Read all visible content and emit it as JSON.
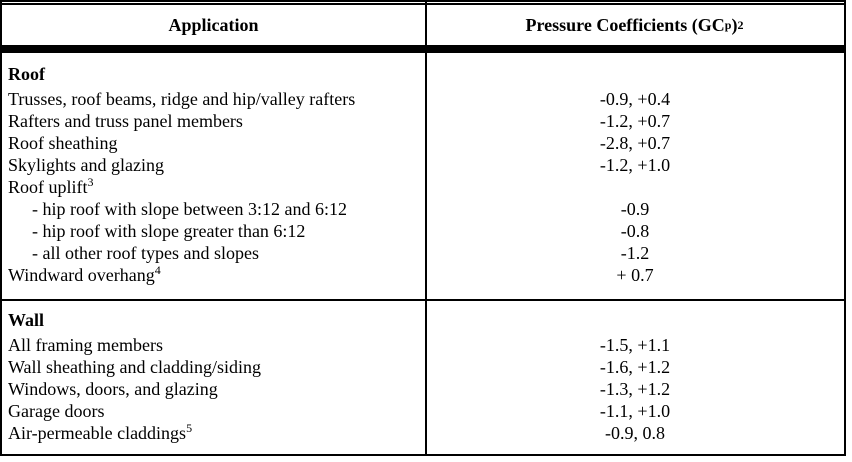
{
  "header": {
    "col1": "Application",
    "col2": {
      "prefix": "Pressure Coefficients (GC",
      "sub": "p",
      "close": ")",
      "sup": "2"
    }
  },
  "sections": [
    {
      "title": "Roof",
      "rows": [
        {
          "label": "Trusses, roof beams, ridge and hip/valley rafters",
          "value": "-0.9, +0.4"
        },
        {
          "label": "Rafters and truss panel members",
          "value": "-1.2, +0.7"
        },
        {
          "label": "Roof sheathing",
          "value": "-2.8, +0.7"
        },
        {
          "label": "Skylights and glazing",
          "value": "-1.2, +1.0"
        },
        {
          "label": "Roof uplift",
          "sup": "3",
          "value": ""
        },
        {
          "label": "- hip roof with slope between 3:12 and 6:12",
          "value": "-0.9"
        },
        {
          "label": "- hip roof with slope greater than 6:12",
          "value": "-0.8"
        },
        {
          "label": "- all other roof types and slopes",
          "value": "-1.2"
        },
        {
          "label": "Windward overhang",
          "sup": "4",
          "value": "+ 0.7"
        }
      ]
    },
    {
      "title": "Wall",
      "rows": [
        {
          "label": "All framing members",
          "value": "-1.5, +1.1"
        },
        {
          "label": "Wall sheathing and cladding/siding",
          "value": "-1.6, +1.2"
        },
        {
          "label": "Windows, doors, and glazing",
          "value": "-1.3, +1.2"
        },
        {
          "label": "Garage doors",
          "value": "-1.1, +1.0"
        },
        {
          "label": "Air-permeable claddings",
          "sup": "5",
          "value": "-0.9, 0.8"
        }
      ]
    }
  ],
  "colors": {
    "border": "#000000",
    "background": "#ffffff",
    "text": "#000000"
  }
}
